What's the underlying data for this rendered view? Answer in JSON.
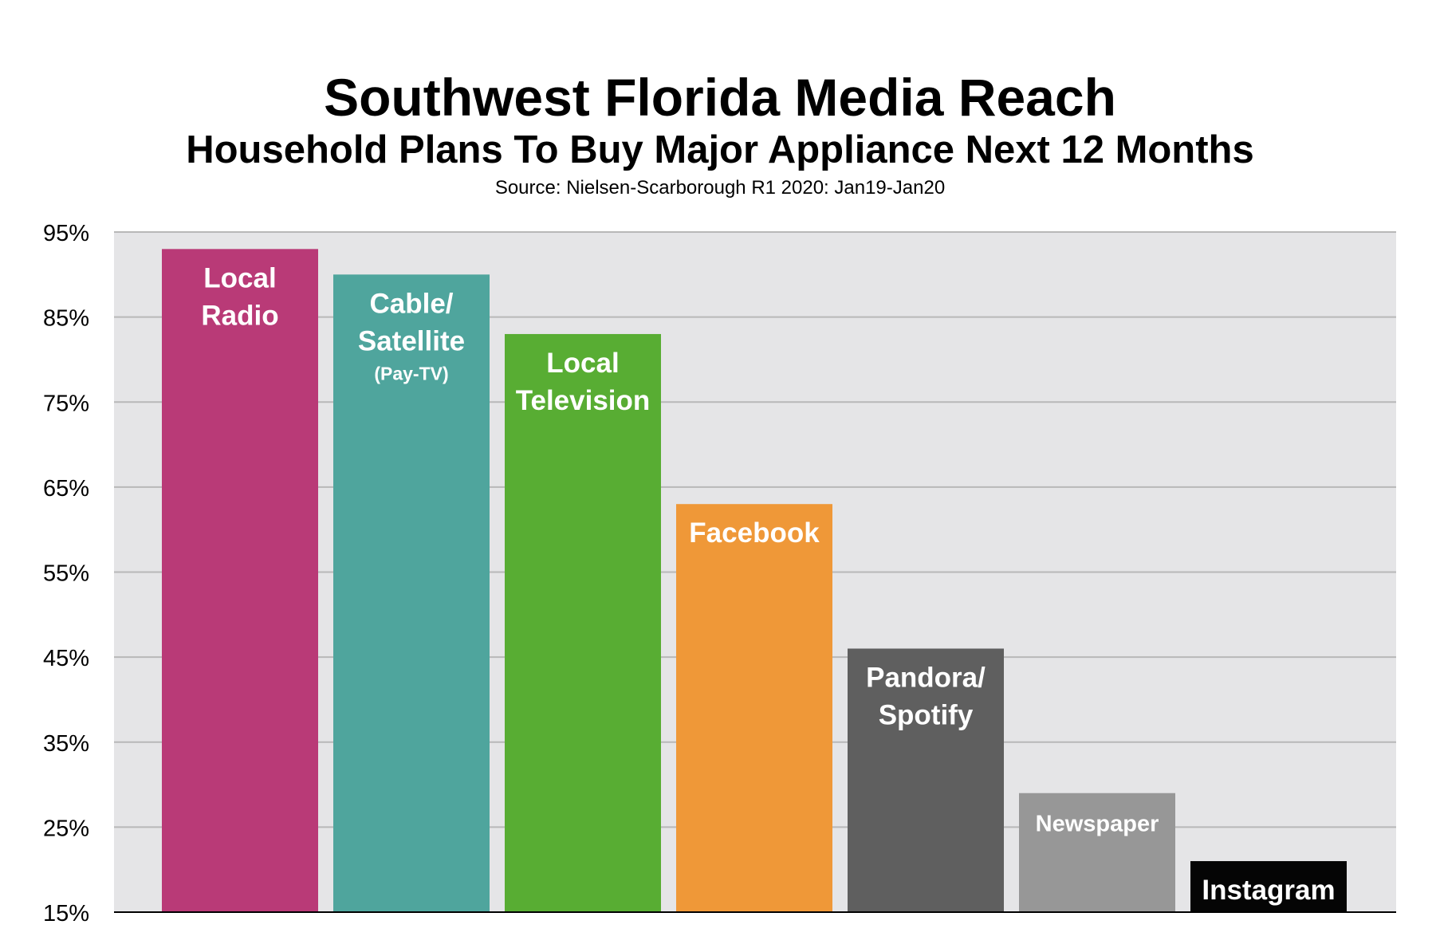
{
  "chart_data": {
    "type": "bar",
    "title": "Southwest Florida Media Reach",
    "subtitle": "Household Plans To Buy Major Appliance Next 12 Months",
    "source": "Source: Nielsen-Scarborough R1 2020: Jan19-Jan20",
    "ylim": [
      15,
      95
    ],
    "yticks": [
      "15%",
      "25%",
      "35%",
      "45%",
      "55%",
      "65%",
      "75%",
      "85%",
      "95%"
    ],
    "grid": true,
    "categories": [
      "Local Radio",
      "Cable/Satellite (Pay-TV)",
      "Local Television",
      "Facebook",
      "Pandora/Spotify",
      "Newspaper",
      "Instagram"
    ],
    "values": [
      93,
      90,
      83,
      63,
      46,
      29,
      21
    ],
    "bars": [
      {
        "lines": [
          "Local",
          "Radio"
        ],
        "small": "",
        "color": "#b93a77",
        "text_color": "#ffffff"
      },
      {
        "lines": [
          "Cable/",
          "Satellite"
        ],
        "small": "(Pay-TV)",
        "color": "#4fa59d",
        "text_color": "#ffffff"
      },
      {
        "lines": [
          "Local",
          "Television"
        ],
        "small": "",
        "color": "#58ad33",
        "text_color": "#ffffff"
      },
      {
        "lines": [
          "Facebook"
        ],
        "small": "",
        "color": "#ef9838",
        "text_color": "#ffffff"
      },
      {
        "lines": [
          "Pandora/",
          "Spotify"
        ],
        "small": "",
        "color": "#5f5f5f",
        "text_color": "#ffffff"
      },
      {
        "lines": [
          "Newspaper"
        ],
        "small": "",
        "color": "#979797",
        "text_color": "#ffffff"
      },
      {
        "lines": [
          "Instagram"
        ],
        "small": "",
        "color": "#050505",
        "text_color": "#ffffff"
      }
    ],
    "colors": {
      "plot_background": "#e5e5e7",
      "gridline": "#b8b8b8",
      "axis": "#000000"
    }
  }
}
